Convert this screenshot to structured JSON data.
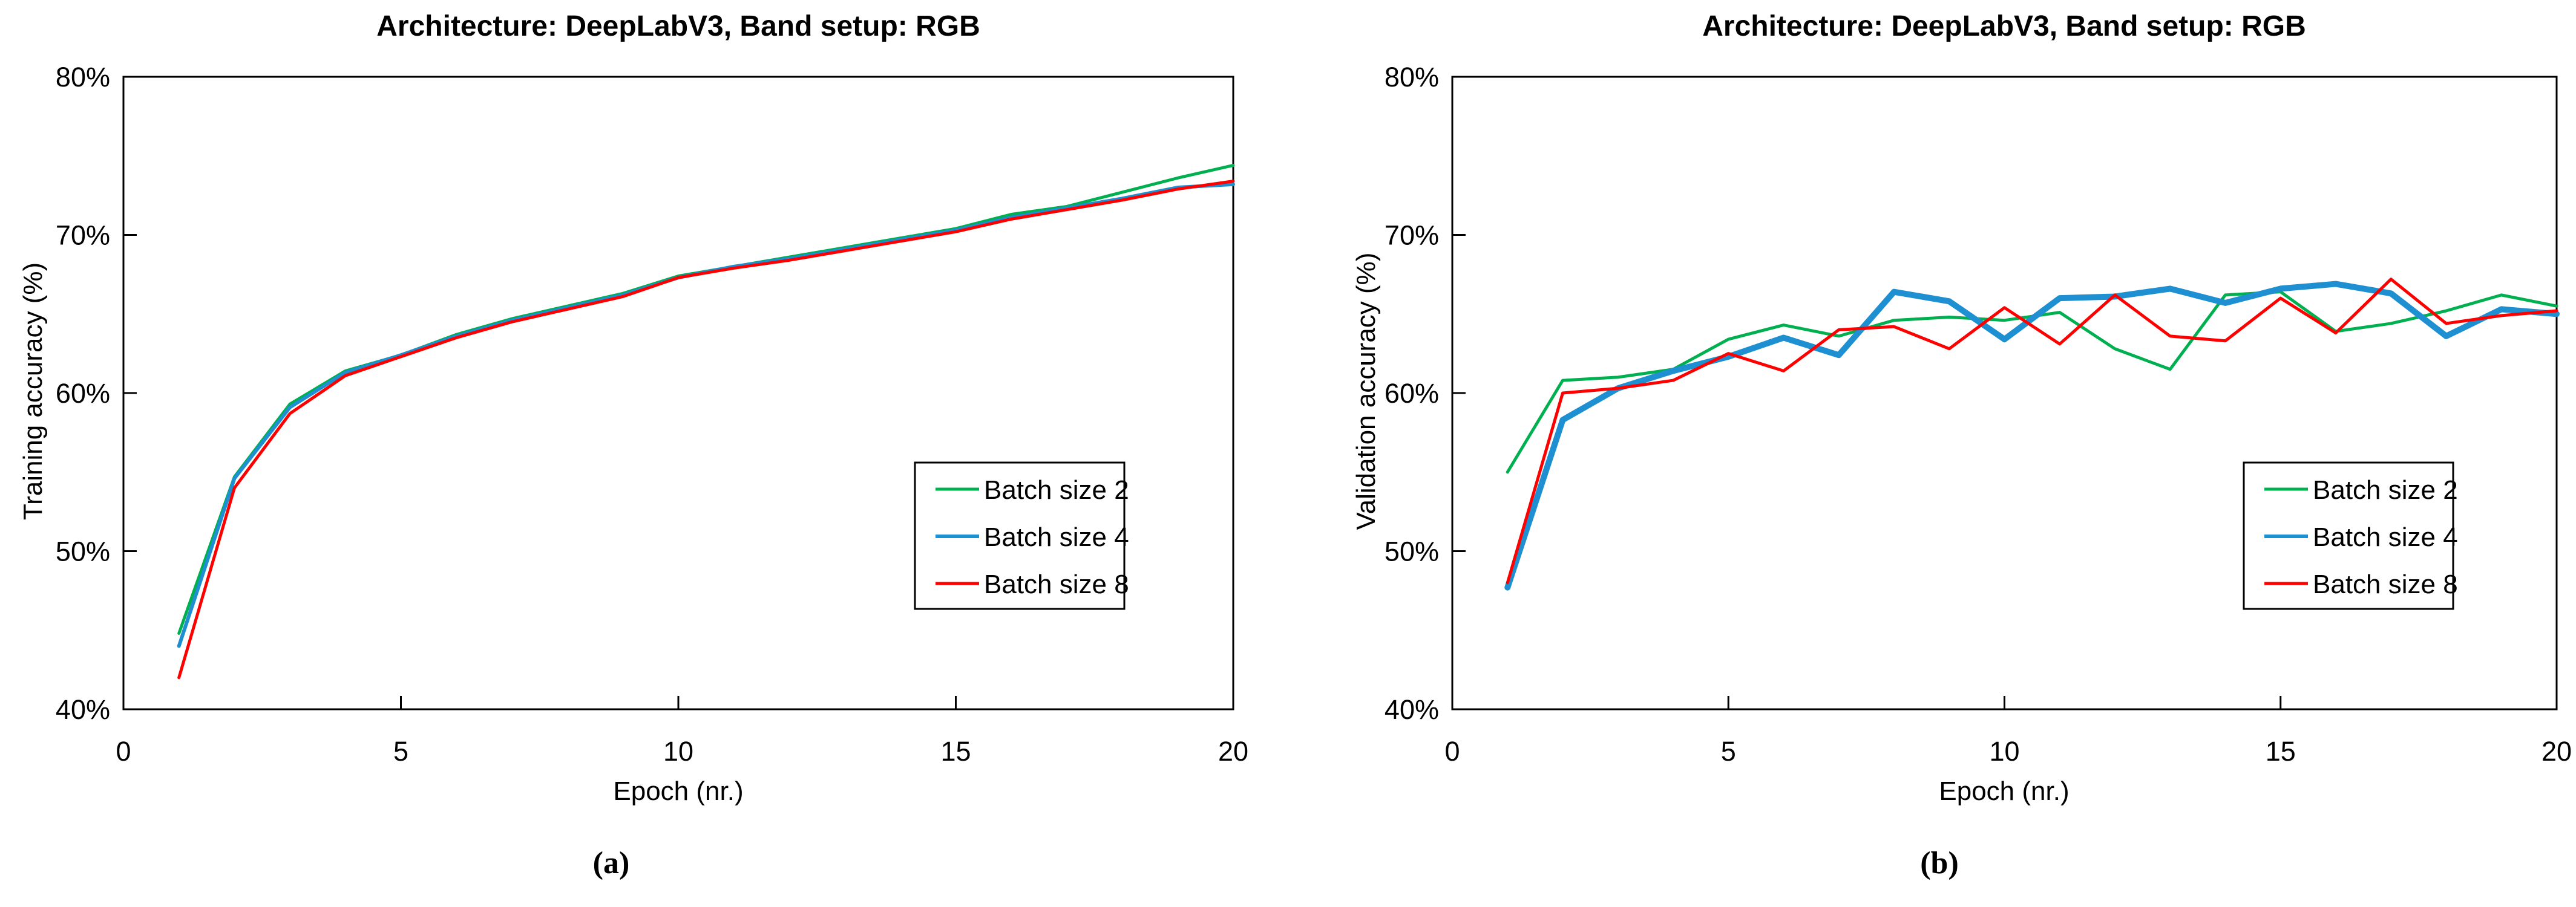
{
  "chart_data": [
    {
      "type": "line",
      "title": "Architecture: DeepLabV3, Band setup: RGB",
      "panel_label": "(a)",
      "xlabel": "Epoch (nr.)",
      "ylabel": "Training accuracy (%)",
      "xlim": [
        0,
        20
      ],
      "ylim": [
        40,
        80
      ],
      "x_ticks": [
        0,
        5,
        10,
        15,
        20
      ],
      "y_tick_values": [
        40,
        50,
        60,
        70,
        80
      ],
      "y_tick_labels": [
        "40%",
        "50%",
        "60%",
        "70%",
        "80%"
      ],
      "grid": false,
      "legend_position": "right-middle",
      "x": [
        1,
        2,
        3,
        4,
        5,
        6,
        7,
        8,
        9,
        10,
        11,
        12,
        13,
        14,
        15,
        16,
        17,
        18,
        19,
        20
      ],
      "series": [
        {
          "name": "Batch size 2",
          "color": "#00B050",
          "width": 5,
          "values": [
            44.8,
            54.7,
            59.3,
            61.4,
            62.4,
            63.7,
            64.7,
            65.5,
            66.3,
            67.4,
            68.0,
            68.6,
            69.2,
            69.8,
            70.4,
            71.3,
            71.8,
            72.7,
            73.6,
            74.4
          ]
        },
        {
          "name": "Batch size 4",
          "color": "#1E8FD0",
          "width": 6,
          "values": [
            44.0,
            54.6,
            59.1,
            61.3,
            62.4,
            63.6,
            64.6,
            65.4,
            66.2,
            67.3,
            68.0,
            68.5,
            69.1,
            69.7,
            70.3,
            71.1,
            71.7,
            72.3,
            73.0,
            73.2
          ]
        },
        {
          "name": "Batch size 8",
          "color": "#FF0000",
          "width": 5,
          "values": [
            42.0,
            54.0,
            58.7,
            61.1,
            62.3,
            63.5,
            64.5,
            65.3,
            66.1,
            67.3,
            67.9,
            68.4,
            69.0,
            69.6,
            70.2,
            71.0,
            71.6,
            72.2,
            72.9,
            73.4
          ]
        }
      ]
    },
    {
      "type": "line",
      "title": "Architecture: DeepLabV3, Band setup: RGB",
      "panel_label": "(b)",
      "xlabel": "Epoch (nr.)",
      "ylabel": "Validation accuracy (%)",
      "xlim": [
        0,
        20
      ],
      "ylim": [
        40,
        80
      ],
      "x_ticks": [
        0,
        5,
        10,
        15,
        20
      ],
      "y_tick_values": [
        40,
        50,
        60,
        70,
        80
      ],
      "y_tick_labels": [
        "40%",
        "50%",
        "60%",
        "70%",
        "80%"
      ],
      "grid": false,
      "legend_position": "right-middle",
      "x": [
        1,
        2,
        3,
        4,
        5,
        6,
        7,
        8,
        9,
        10,
        11,
        12,
        13,
        14,
        15,
        16,
        17,
        18,
        19,
        20
      ],
      "series": [
        {
          "name": "Batch size 2",
          "color": "#00B050",
          "width": 5,
          "values": [
            55.0,
            60.8,
            61.0,
            61.5,
            63.4,
            64.3,
            63.6,
            64.6,
            64.8,
            64.6,
            65.1,
            62.8,
            61.5,
            66.2,
            66.4,
            63.9,
            64.4,
            65.2,
            66.2,
            65.5
          ]
        },
        {
          "name": "Batch size 4",
          "color": "#1E8FD0",
          "width": 10,
          "values": [
            47.7,
            58.3,
            60.3,
            61.4,
            62.3,
            63.5,
            62.4,
            66.4,
            65.8,
            63.4,
            66.0,
            66.1,
            66.6,
            65.7,
            66.6,
            66.9,
            66.3,
            63.6,
            65.3,
            65.0
          ]
        },
        {
          "name": "Batch size 8",
          "color": "#FF0000",
          "width": 5,
          "values": [
            48.0,
            60.0,
            60.3,
            60.8,
            62.5,
            61.4,
            64.0,
            64.2,
            62.8,
            65.4,
            63.1,
            66.2,
            63.6,
            63.3,
            66.0,
            63.8,
            67.2,
            64.4,
            64.9,
            65.2
          ]
        }
      ]
    }
  ],
  "layout_text": {
    "axis_color": "#000000"
  }
}
